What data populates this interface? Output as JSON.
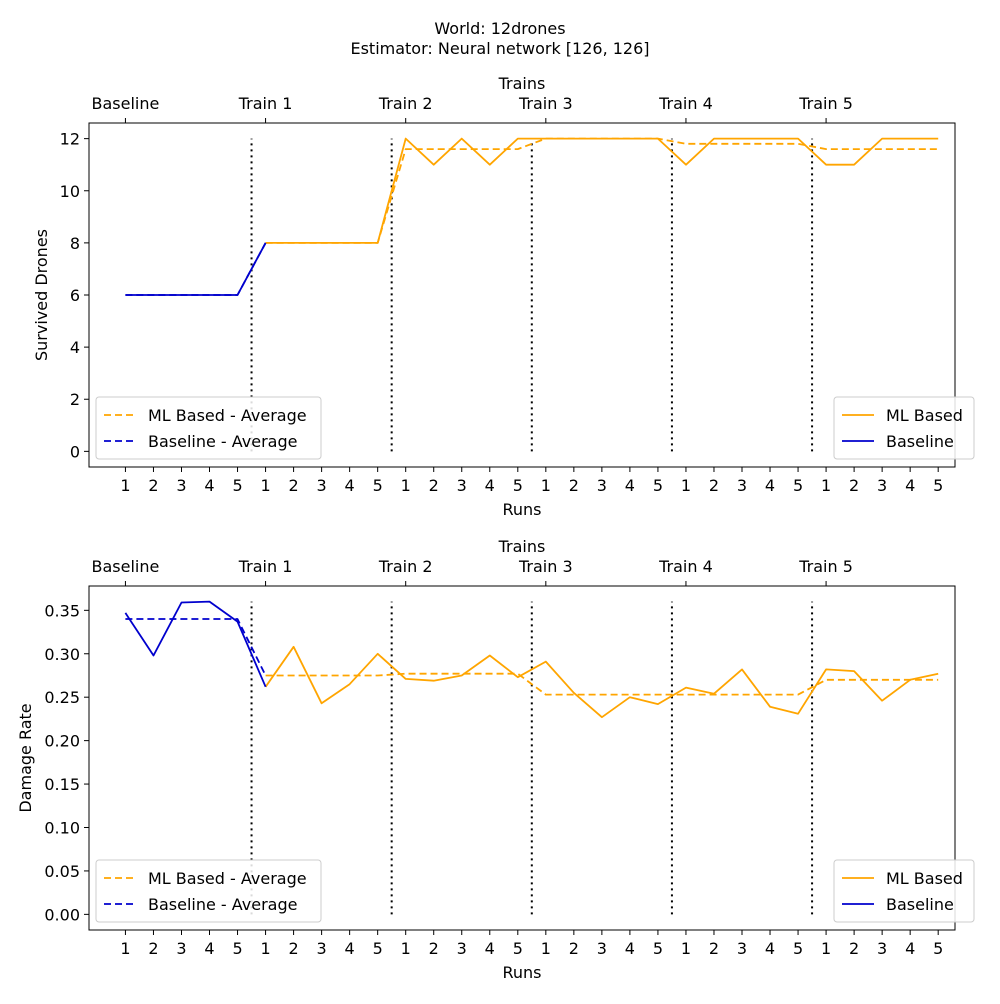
{
  "figure": {
    "title_line1": "World: 12drones",
    "title_line2": "Estimator: Neural network [126, 126]"
  },
  "chart_data": [
    {
      "type": "line",
      "top_axis_label": "Trains",
      "top_ticks": [
        "Baseline",
        "Train 1",
        "Train 2",
        "Train 3",
        "Train 4",
        "Train 5"
      ],
      "xlabel": "Runs",
      "ylabel": "Survived Drones",
      "x_ticks": [
        "1",
        "2",
        "3",
        "4",
        "5",
        "1",
        "2",
        "3",
        "4",
        "5",
        "1",
        "2",
        "3",
        "4",
        "5",
        "1",
        "2",
        "3",
        "4",
        "5",
        "1",
        "2",
        "3",
        "4",
        "5",
        "1",
        "2",
        "3",
        "4",
        "5"
      ],
      "y_ticks": [
        "0",
        "2",
        "4",
        "6",
        "8",
        "10",
        "12"
      ],
      "ylim": [
        -0.6,
        12.6
      ],
      "y_tick_values": [
        0,
        2,
        4,
        6,
        8,
        10,
        12
      ],
      "xlim": [
        -1.3,
        29.6
      ],
      "train_boundaries": [
        4.5,
        9.5,
        14.5,
        19.5,
        24.5
      ],
      "boundary_range": [
        0,
        12
      ],
      "series": [
        {
          "name": "ML Based",
          "style": "solid",
          "color": "#ffa500",
          "x": [
            5,
            6,
            7,
            8,
            9,
            10,
            11,
            12,
            13,
            14,
            15,
            16,
            17,
            18,
            19,
            20,
            21,
            22,
            23,
            24,
            25,
            26,
            27,
            28,
            29
          ],
          "y": [
            8,
            8,
            8,
            8,
            8,
            12,
            11,
            12,
            11,
            12,
            12,
            12,
            12,
            12,
            12,
            11,
            12,
            12,
            12,
            12,
            11,
            11,
            12,
            12,
            12
          ]
        },
        {
          "name": "Baseline",
          "style": "solid",
          "color": "#0000cd",
          "x": [
            0,
            1,
            2,
            3,
            4,
            5
          ],
          "y": [
            6,
            6,
            6,
            6,
            6,
            8
          ]
        },
        {
          "name": "ML Based - Average",
          "style": "dashed",
          "color": "#ffa500",
          "x": [
            5,
            9,
            10,
            14,
            15,
            19,
            20,
            24,
            25,
            29
          ],
          "y": [
            8,
            8,
            11.6,
            11.6,
            12,
            12,
            11.8,
            11.8,
            11.6,
            11.6
          ]
        },
        {
          "name": "Baseline - Average",
          "style": "dashed",
          "color": "#0000cd",
          "x": [
            0,
            4,
            5
          ],
          "y": [
            6,
            6,
            8
          ]
        }
      ],
      "legend_left": [
        "ML Based - Average",
        "Baseline - Average"
      ],
      "legend_right": [
        "ML Based",
        "Baseline"
      ]
    },
    {
      "type": "line",
      "top_axis_label": "Trains",
      "top_ticks": [
        "Baseline",
        "Train 1",
        "Train 2",
        "Train 3",
        "Train 4",
        "Train 5"
      ],
      "xlabel": "Runs",
      "ylabel": "Damage Rate",
      "x_ticks": [
        "1",
        "2",
        "3",
        "4",
        "5",
        "1",
        "2",
        "3",
        "4",
        "5",
        "1",
        "2",
        "3",
        "4",
        "5",
        "1",
        "2",
        "3",
        "4",
        "5",
        "1",
        "2",
        "3",
        "4",
        "5",
        "1",
        "2",
        "3",
        "4",
        "5"
      ],
      "y_ticks": [
        "0.00",
        "0.05",
        "0.10",
        "0.15",
        "0.20",
        "0.25",
        "0.30",
        "0.35"
      ],
      "ylim": [
        -0.018,
        0.378
      ],
      "y_tick_values": [
        0,
        0.05,
        0.1,
        0.15,
        0.2,
        0.25,
        0.3,
        0.35
      ],
      "xlim": [
        -1.3,
        29.6
      ],
      "train_boundaries": [
        4.5,
        9.5,
        14.5,
        19.5,
        24.5
      ],
      "boundary_range": [
        0,
        0.36
      ],
      "series": [
        {
          "name": "ML Based",
          "style": "solid",
          "color": "#ffa500",
          "x": [
            5,
            6,
            7,
            8,
            9,
            10,
            11,
            12,
            13,
            14,
            15,
            16,
            17,
            18,
            19,
            20,
            21,
            22,
            23,
            24,
            25,
            26,
            27,
            28,
            29
          ],
          "y": [
            0.262,
            0.308,
            0.243,
            0.265,
            0.3,
            0.271,
            0.269,
            0.275,
            0.298,
            0.273,
            0.291,
            0.255,
            0.227,
            0.25,
            0.242,
            0.261,
            0.254,
            0.282,
            0.239,
            0.231,
            0.282,
            0.28,
            0.246,
            0.27,
            0.277
          ]
        },
        {
          "name": "Baseline",
          "style": "solid",
          "color": "#0000cd",
          "x": [
            0,
            1,
            2,
            3,
            4,
            5
          ],
          "y": [
            0.347,
            0.298,
            0.359,
            0.36,
            0.337,
            0.262
          ]
        },
        {
          "name": "ML Based - Average",
          "style": "dashed",
          "color": "#ffa500",
          "x": [
            5,
            9,
            10,
            14,
            15,
            19,
            20,
            24,
            25,
            29
          ],
          "y": [
            0.275,
            0.275,
            0.277,
            0.277,
            0.253,
            0.253,
            0.253,
            0.253,
            0.27,
            0.27
          ]
        },
        {
          "name": "Baseline - Average",
          "style": "dashed",
          "color": "#0000cd",
          "x": [
            0,
            4,
            5
          ],
          "y": [
            0.34,
            0.34,
            0.275
          ]
        }
      ],
      "legend_left": [
        "ML Based - Average",
        "Baseline - Average"
      ],
      "legend_right": [
        "ML Based",
        "Baseline"
      ]
    }
  ]
}
